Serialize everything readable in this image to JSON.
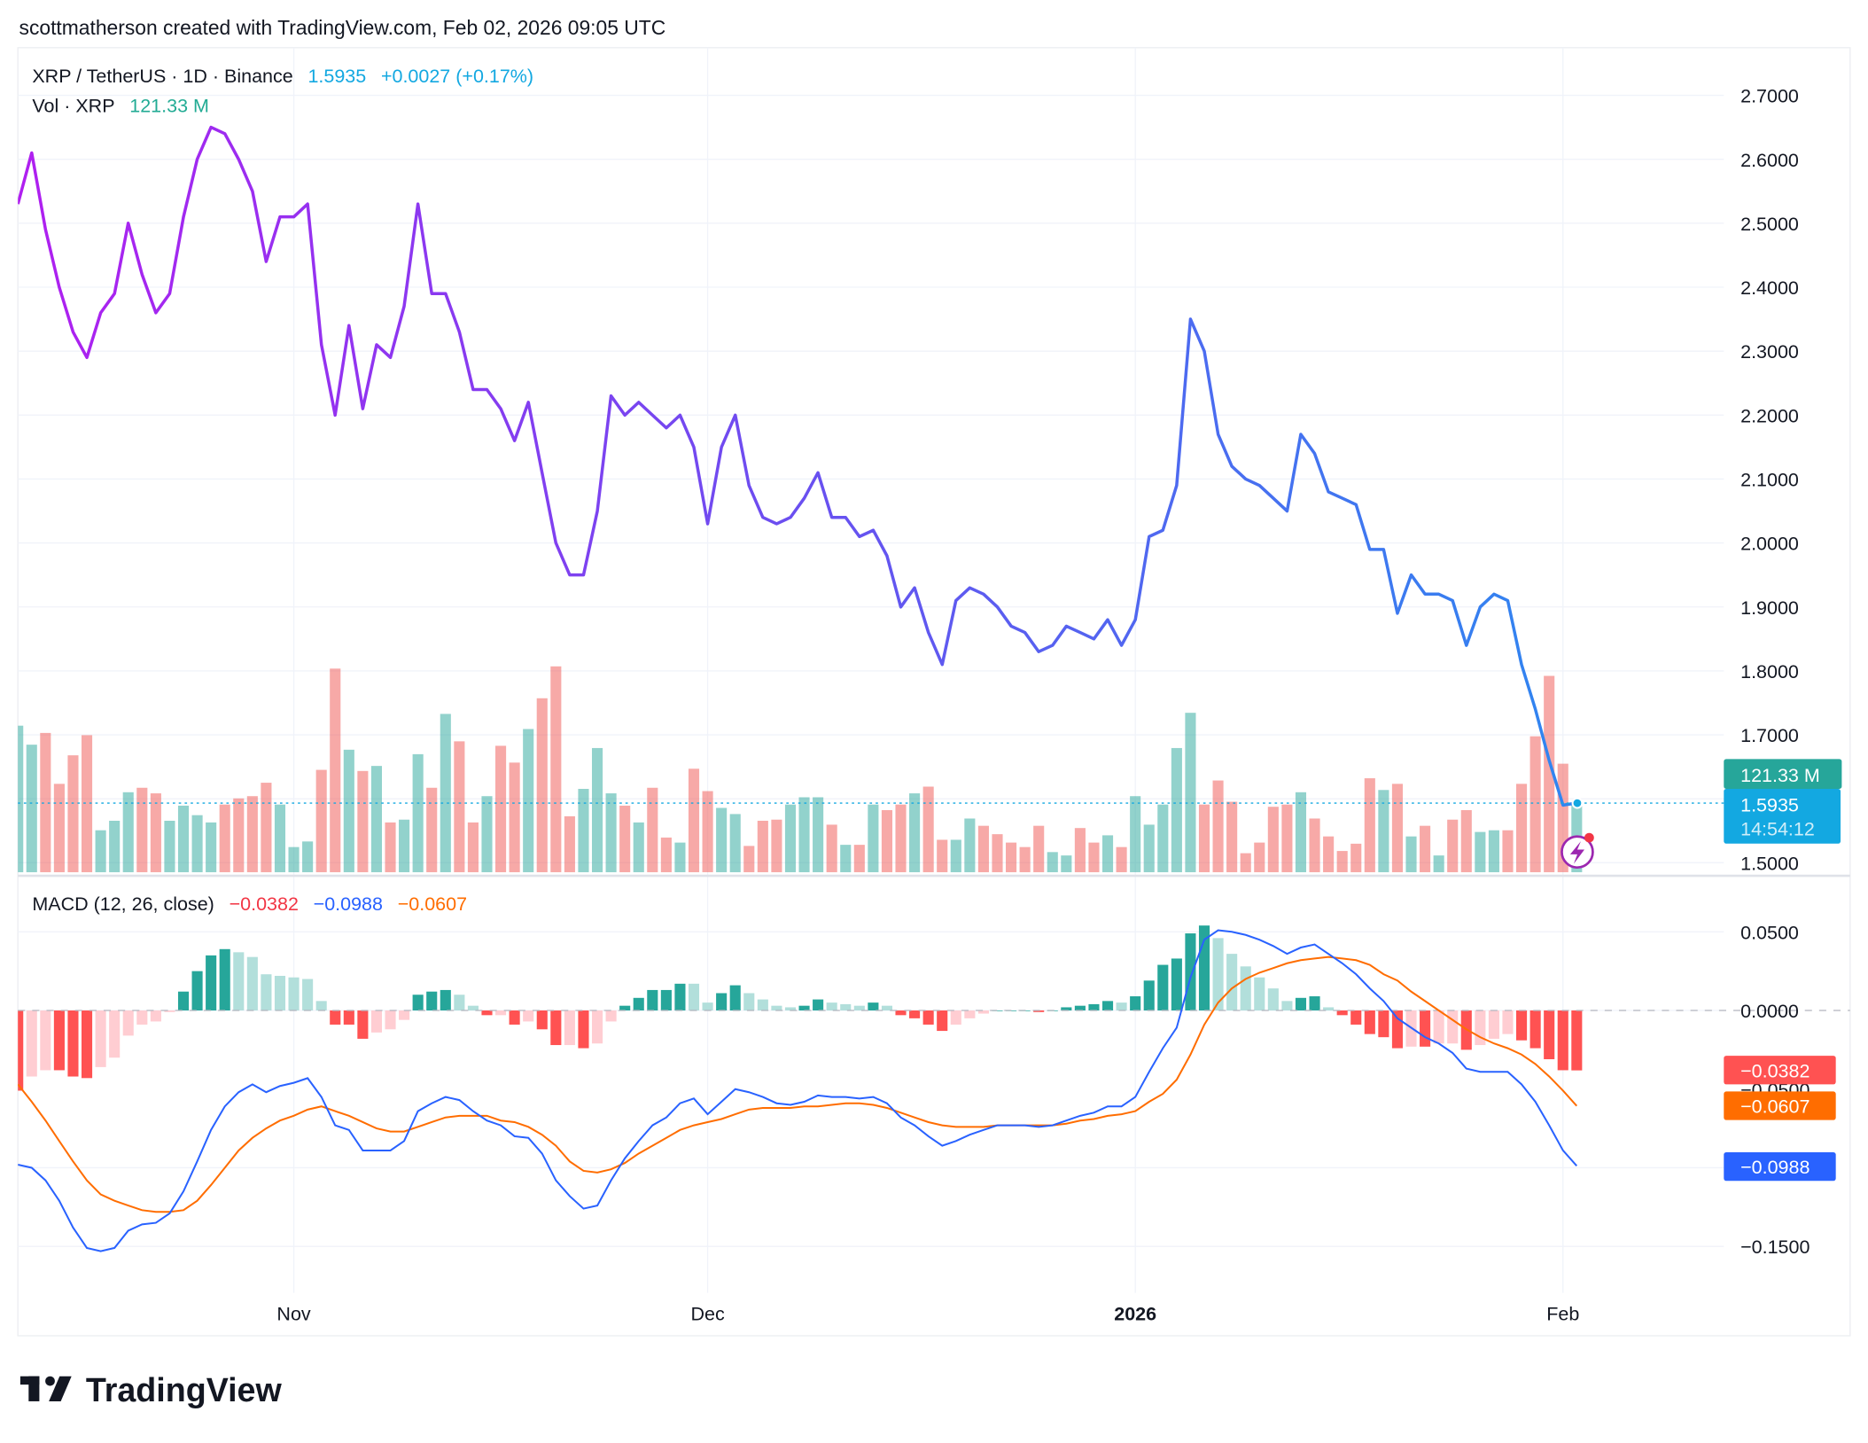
{
  "header": {
    "credit": "scottmatherson created with TradingView.com, Feb 02, 2026 09:05 UTC"
  },
  "legend": {
    "symbol": "XRP / TetherUS · 1D · Binance",
    "price": "1.5935",
    "change": "+0.0027 (+0.17%)",
    "volume_label": "Vol · XRP",
    "volume_value": "121.33 M",
    "macd_label": "MACD (12, 26, close)",
    "macd_hist": "−0.0382",
    "macd_line": "−0.0988",
    "macd_signal": "−0.0607"
  },
  "price_tags": {
    "volume": "121.33 M",
    "price": "1.5935",
    "countdown": "14:54:12"
  },
  "macd_tags": {
    "hist": "−0.0382",
    "macd": "−0.0988",
    "signal": "−0.0607",
    "hidden_tick": "−0.0500"
  },
  "logo": {
    "text": "TradingView"
  },
  "colors": {
    "up": "#26a69a",
    "down": "#ef5350",
    "price_start": "#b01ff0",
    "price_end": "#2f86f0",
    "last_price": "#13a8e1",
    "macd": "#2962ff",
    "signal": "#ff6d00",
    "volume_tag": "#26a69a",
    "hist_pos_rise": "#26a69a",
    "hist_pos_fall": "#b2dfdb",
    "hist_neg_fall": "#ff5252",
    "hist_neg_rise": "#ffcdd2"
  },
  "chart_data": [
    {
      "type": "line",
      "pane": "price",
      "series": [
        {
          "name": "XRP / TetherUS",
          "values": [
            2.53,
            2.61,
            2.49,
            2.4,
            2.33,
            2.29,
            2.36,
            2.39,
            2.5,
            2.42,
            2.36,
            2.39,
            2.51,
            2.6,
            2.65,
            2.64,
            2.6,
            2.55,
            2.44,
            2.51,
            2.51,
            2.53,
            2.31,
            2.2,
            2.34,
            2.21,
            2.31,
            2.29,
            2.37,
            2.53,
            2.39,
            2.39,
            2.33,
            2.24,
            2.24,
            2.21,
            2.16,
            2.22,
            2.11,
            2.0,
            1.95,
            1.95,
            2.05,
            2.23,
            2.2,
            2.22,
            2.2,
            2.18,
            2.2,
            2.15,
            2.03,
            2.15,
            2.2,
            2.09,
            2.04,
            2.03,
            2.04,
            2.07,
            2.11,
            2.04,
            2.04,
            2.01,
            2.02,
            1.98,
            1.9,
            1.93,
            1.86,
            1.81,
            1.91,
            1.93,
            1.92,
            1.9,
            1.87,
            1.86,
            1.83,
            1.84,
            1.87,
            1.86,
            1.85,
            1.88,
            1.84,
            1.88,
            2.01,
            2.02,
            2.09,
            2.35,
            2.3,
            2.17,
            2.12,
            2.1,
            2.09,
            2.07,
            2.05,
            2.17,
            2.14,
            2.08,
            2.07,
            2.06,
            1.99,
            1.99,
            1.89,
            1.95,
            1.92,
            1.92,
            1.91,
            1.84,
            1.9,
            1.92,
            1.91,
            1.81,
            1.74,
            1.66,
            1.59,
            1.5935
          ]
        }
      ],
      "volume_millions": [
        262,
        228,
        249,
        158,
        209,
        245,
        75,
        92,
        143,
        151,
        141,
        92,
        119,
        102,
        89,
        121,
        132,
        136,
        160,
        121,
        45,
        55,
        183,
        364,
        219,
        181,
        190,
        89,
        94,
        211,
        151,
        283,
        234,
        89,
        136,
        226,
        196,
        256,
        311,
        368,
        100,
        149,
        222,
        141,
        119,
        89,
        151,
        62,
        53,
        185,
        145,
        115,
        104,
        47,
        92,
        94,
        121,
        134,
        134,
        85,
        49,
        49,
        121,
        111,
        121,
        141,
        153,
        58,
        58,
        96,
        83,
        68,
        53,
        45,
        83,
        36,
        30,
        79,
        53,
        66,
        45,
        136,
        85,
        121,
        222,
        285,
        121,
        164,
        126,
        34,
        53,
        117,
        121,
        143,
        96,
        64,
        38,
        51,
        168,
        147,
        158,
        64,
        83,
        30,
        94,
        111,
        72,
        75,
        75,
        158,
        243,
        351,
        194,
        121.33
      ],
      "yticks": [
        "2.7000",
        "2.6000",
        "2.5000",
        "2.4000",
        "2.3000",
        "2.2000",
        "2.1000",
        "2.0000",
        "1.9000",
        "1.8000",
        "1.7000",
        "1.6000",
        "1.5000"
      ],
      "ylim": [
        1.5,
        2.7
      ],
      "grid": true
    },
    {
      "type": "line",
      "pane": "macd",
      "series": [
        {
          "name": "MACD",
          "values": [
            -0.098,
            -0.1,
            -0.108,
            -0.121,
            -0.138,
            -0.151,
            -0.153,
            -0.151,
            -0.14,
            -0.136,
            -0.135,
            -0.129,
            -0.115,
            -0.096,
            -0.076,
            -0.061,
            -0.052,
            -0.047,
            -0.052,
            -0.048,
            -0.046,
            -0.043,
            -0.055,
            -0.073,
            -0.076,
            -0.089,
            -0.089,
            -0.089,
            -0.083,
            -0.064,
            -0.059,
            -0.055,
            -0.057,
            -0.064,
            -0.07,
            -0.073,
            -0.08,
            -0.081,
            -0.091,
            -0.108,
            -0.118,
            -0.126,
            -0.124,
            -0.108,
            -0.094,
            -0.083,
            -0.073,
            -0.068,
            -0.059,
            -0.056,
            -0.066,
            -0.058,
            -0.05,
            -0.052,
            -0.055,
            -0.059,
            -0.06,
            -0.058,
            -0.054,
            -0.055,
            -0.055,
            -0.056,
            -0.055,
            -0.059,
            -0.068,
            -0.073,
            -0.08,
            -0.086,
            -0.083,
            -0.079,
            -0.076,
            -0.073,
            -0.073,
            -0.073,
            -0.074,
            -0.073,
            -0.07,
            -0.067,
            -0.065,
            -0.061,
            -0.061,
            -0.055,
            -0.039,
            -0.024,
            -0.011,
            0.021,
            0.045,
            0.051,
            0.05,
            0.048,
            0.045,
            0.041,
            0.036,
            0.04,
            0.042,
            0.036,
            0.03,
            0.023,
            0.014,
            0.006,
            -0.005,
            -0.011,
            -0.017,
            -0.021,
            -0.027,
            -0.037,
            -0.039,
            -0.039,
            -0.039,
            -0.047,
            -0.058,
            -0.073,
            -0.089,
            -0.0988
          ]
        },
        {
          "name": "Signal",
          "values": [
            -0.047,
            -0.058,
            -0.07,
            -0.083,
            -0.096,
            -0.108,
            -0.117,
            -0.121,
            -0.124,
            -0.127,
            -0.128,
            -0.128,
            -0.127,
            -0.121,
            -0.111,
            -0.1,
            -0.089,
            -0.081,
            -0.075,
            -0.07,
            -0.067,
            -0.063,
            -0.061,
            -0.064,
            -0.067,
            -0.071,
            -0.075,
            -0.077,
            -0.077,
            -0.074,
            -0.071,
            -0.068,
            -0.067,
            -0.067,
            -0.067,
            -0.07,
            -0.071,
            -0.074,
            -0.079,
            -0.086,
            -0.096,
            -0.102,
            -0.103,
            -0.101,
            -0.097,
            -0.091,
            -0.086,
            -0.081,
            -0.076,
            -0.073,
            -0.071,
            -0.069,
            -0.066,
            -0.063,
            -0.062,
            -0.062,
            -0.062,
            -0.061,
            -0.061,
            -0.06,
            -0.059,
            -0.059,
            -0.06,
            -0.062,
            -0.065,
            -0.068,
            -0.071,
            -0.073,
            -0.074,
            -0.074,
            -0.074,
            -0.073,
            -0.073,
            -0.073,
            -0.073,
            -0.073,
            -0.072,
            -0.07,
            -0.069,
            -0.067,
            -0.066,
            -0.064,
            -0.058,
            -0.053,
            -0.044,
            -0.028,
            -0.009,
            0.005,
            0.014,
            0.02,
            0.024,
            0.027,
            0.03,
            0.032,
            0.033,
            0.034,
            0.033,
            0.032,
            0.029,
            0.023,
            0.019,
            0.012,
            0.006,
            0.0,
            -0.006,
            -0.012,
            -0.017,
            -0.021,
            -0.024,
            -0.028,
            -0.034,
            -0.042,
            -0.051,
            -0.0607
          ]
        }
      ],
      "yticks": [
        "0.0500",
        "0.0000",
        "−0.1500"
      ],
      "ylim": [
        -0.16,
        0.07
      ]
    }
  ],
  "dates": [
    "2025-10-12",
    "2025-10-13",
    "2025-10-14",
    "2025-10-15",
    "2025-10-16",
    "2025-10-17",
    "2025-10-18",
    "2025-10-19",
    "2025-10-20",
    "2025-10-21",
    "2025-10-22",
    "2025-10-23",
    "2025-10-24",
    "2025-10-25",
    "2025-10-26",
    "2025-10-27",
    "2025-10-28",
    "2025-10-29",
    "2025-10-30",
    "2025-10-31",
    "2025-11-01",
    "2025-11-02",
    "2025-11-03",
    "2025-11-04",
    "2025-11-05",
    "2025-11-06",
    "2025-11-07",
    "2025-11-08",
    "2025-11-09",
    "2025-11-10",
    "2025-11-11",
    "2025-11-12",
    "2025-11-13",
    "2025-11-14",
    "2025-11-15",
    "2025-11-16",
    "2025-11-17",
    "2025-11-18",
    "2025-11-19",
    "2025-11-20",
    "2025-11-21",
    "2025-11-22",
    "2025-11-23",
    "2025-11-24",
    "2025-11-25",
    "2025-11-26",
    "2025-11-27",
    "2025-11-28",
    "2025-11-29",
    "2025-11-30",
    "2025-12-01",
    "2025-12-02",
    "2025-12-03",
    "2025-12-04",
    "2025-12-05",
    "2025-12-06",
    "2025-12-07",
    "2025-12-08",
    "2025-12-09",
    "2025-12-10",
    "2025-12-11",
    "2025-12-12",
    "2025-12-13",
    "2025-12-14",
    "2025-12-15",
    "2025-12-16",
    "2025-12-17",
    "2025-12-18",
    "2025-12-19",
    "2025-12-20",
    "2025-12-21",
    "2025-12-22",
    "2025-12-23",
    "2025-12-24",
    "2025-12-25",
    "2025-12-26",
    "2025-12-27",
    "2025-12-28",
    "2025-12-29",
    "2025-12-30",
    "2025-12-31",
    "2026-01-01",
    "2026-01-02",
    "2026-01-03",
    "2026-01-04",
    "2026-01-05",
    "2026-01-06",
    "2026-01-07",
    "2026-01-08",
    "2026-01-09",
    "2026-01-10",
    "2026-01-11",
    "2026-01-12",
    "2026-01-13",
    "2026-01-14",
    "2026-01-15",
    "2026-01-16",
    "2026-01-17",
    "2026-01-18",
    "2026-01-19",
    "2026-01-20",
    "2026-01-21",
    "2026-01-22",
    "2026-01-23",
    "2026-01-24",
    "2026-01-25",
    "2026-01-26",
    "2026-01-27",
    "2026-01-28",
    "2026-01-29",
    "2026-01-30",
    "2026-01-31",
    "2026-02-01",
    "2026-02-02"
  ],
  "time_axis": [
    {
      "label": "Nov",
      "date": "2025-11-01",
      "bold": false
    },
    {
      "label": "Dec",
      "date": "2025-12-01",
      "bold": false
    },
    {
      "label": "2026",
      "date": "2026-01-01",
      "bold": true
    },
    {
      "label": "Feb",
      "date": "2026-02-01",
      "bold": false
    }
  ]
}
